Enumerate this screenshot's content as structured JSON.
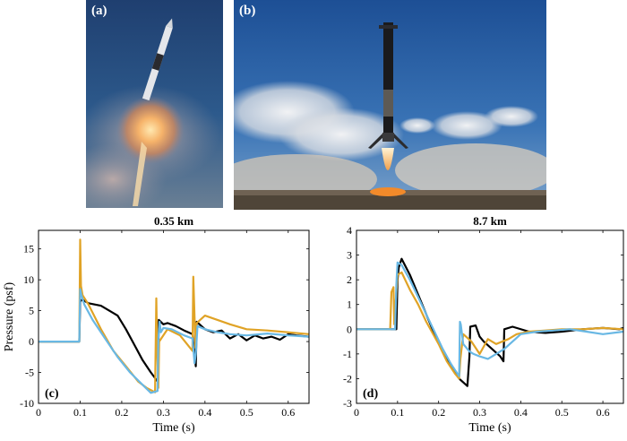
{
  "photos": [
    {
      "label": "(a)"
    },
    {
      "label": "(b)"
    }
  ],
  "colors": {
    "black": "#000000",
    "orange": "#E0A326",
    "blue": "#69B8E4"
  },
  "chart_data": [
    {
      "type": "line",
      "panel_label": "(c)",
      "title": "0.35 km",
      "xlabel": "Time (s)",
      "ylabel": "Pressure (psf)",
      "xlim": [
        0,
        0.65
      ],
      "ylim": [
        -10,
        18
      ],
      "xticks": [
        "0",
        "0.1",
        "0.2",
        "0.3",
        "0.4",
        "0.5",
        "0.6"
      ],
      "yticks": [
        "-10",
        "-5",
        "0",
        "5",
        "10",
        "15"
      ],
      "series": [
        {
          "color": "#000000",
          "x": [
            0,
            0.098,
            0.1,
            0.105,
            0.12,
            0.15,
            0.17,
            0.19,
            0.21,
            0.23,
            0.25,
            0.27,
            0.287,
            0.289,
            0.3,
            0.31,
            0.33,
            0.35,
            0.37,
            0.378,
            0.38,
            0.4,
            0.42,
            0.44,
            0.46,
            0.48,
            0.5,
            0.52,
            0.54,
            0.56,
            0.58,
            0.6,
            0.62,
            0.65
          ],
          "y": [
            0,
            0,
            6.5,
            6.8,
            6.2,
            5.8,
            5,
            4.2,
            2,
            -0.5,
            -3,
            -5,
            -6.5,
            3.5,
            2.8,
            3,
            2.5,
            1.8,
            1.2,
            -4,
            3.2,
            2,
            1.5,
            1.8,
            0.5,
            1.2,
            0.2,
            1,
            0.5,
            0.8,
            0.3,
            1.2,
            1,
            0.8
          ]
        },
        {
          "color": "#E0A326",
          "x": [
            0,
            0.098,
            0.1,
            0.102,
            0.106,
            0.12,
            0.15,
            0.18,
            0.21,
            0.24,
            0.26,
            0.28,
            0.283,
            0.285,
            0.288,
            0.29,
            0.31,
            0.34,
            0.37,
            0.372,
            0.375,
            0.377,
            0.38,
            0.4,
            0.43,
            0.46,
            0.5,
            0.55,
            0.6,
            0.65
          ],
          "y": [
            0,
            0,
            16.5,
            9,
            7.5,
            6,
            2,
            -1.5,
            -4,
            -6.5,
            -7.5,
            -8.2,
            7,
            -0.5,
            -7.5,
            0,
            2,
            1,
            -1.5,
            10.5,
            4,
            -1,
            3,
            4.2,
            3.5,
            2.8,
            2,
            1.8,
            1.5,
            1.2
          ]
        },
        {
          "color": "#69B8E4",
          "x": [
            0,
            0.098,
            0.1,
            0.103,
            0.11,
            0.13,
            0.16,
            0.19,
            0.22,
            0.25,
            0.27,
            0.286,
            0.288,
            0.291,
            0.294,
            0.3,
            0.32,
            0.35,
            0.37,
            0.375,
            0.378,
            0.382,
            0.4,
            0.43,
            0.46,
            0.5,
            0.55,
            0.6,
            0.65
          ],
          "y": [
            0,
            0,
            8.5,
            7.5,
            6,
            3.5,
            0.5,
            -2.5,
            -5,
            -7,
            -8.3,
            -8,
            0.5,
            3.2,
            1.5,
            2.2,
            2,
            1,
            0.5,
            -3.5,
            -2,
            2.5,
            2,
            1.5,
            1.2,
            1,
            1.3,
            1,
            0.8
          ]
        }
      ]
    },
    {
      "type": "line",
      "panel_label": "(d)",
      "title": "8.7 km",
      "xlabel": "Time (s)",
      "ylabel": "",
      "xlim": [
        0,
        0.65
      ],
      "ylim": [
        -3,
        4
      ],
      "xticks": [
        "0",
        "0.1",
        "0.2",
        "0.3",
        "0.4",
        "0.5",
        "0.6"
      ],
      "yticks": [
        "-3",
        "-2",
        "-1",
        "0",
        "1",
        "2",
        "3",
        "4"
      ],
      "series": [
        {
          "color": "#000000",
          "x": [
            0,
            0.097,
            0.1,
            0.103,
            0.11,
            0.13,
            0.15,
            0.17,
            0.19,
            0.21,
            0.23,
            0.25,
            0.27,
            0.275,
            0.277,
            0.29,
            0.3,
            0.31,
            0.33,
            0.35,
            0.358,
            0.36,
            0.38,
            0.42,
            0.46,
            0.5,
            0.55,
            0.6,
            0.64,
            0.65
          ],
          "y": [
            0,
            0,
            2,
            2.5,
            2.85,
            2.2,
            1.4,
            0.6,
            -0.2,
            -0.9,
            -1.5,
            -2,
            -2.3,
            -1.1,
            0.1,
            0.15,
            -0.3,
            -0.5,
            -0.8,
            -1.1,
            -1.3,
            0,
            0.1,
            -0.1,
            -0.15,
            -0.1,
            0,
            0.05,
            0,
            0.05
          ]
        },
        {
          "color": "#E0A326",
          "x": [
            0,
            0.082,
            0.085,
            0.09,
            0.092,
            0.095,
            0.1,
            0.11,
            0.13,
            0.15,
            0.17,
            0.2,
            0.22,
            0.24,
            0.25,
            0.253,
            0.26,
            0.28,
            0.3,
            0.32,
            0.34,
            0.37,
            0.39,
            0.42,
            0.46,
            0.5,
            0.55,
            0.6,
            0.65
          ],
          "y": [
            0,
            0,
            1.5,
            1.7,
            0.2,
            1,
            2.2,
            2.3,
            1.6,
            1,
            0.3,
            -0.6,
            -1.3,
            -1.8,
            -2,
            -1.2,
            -0.2,
            -0.5,
            -1,
            -0.4,
            -0.6,
            -0.4,
            -0.2,
            -0.1,
            -0.05,
            0,
            0,
            0.05,
            0
          ]
        },
        {
          "color": "#69B8E4",
          "x": [
            0,
            0.094,
            0.097,
            0.1,
            0.11,
            0.13,
            0.15,
            0.17,
            0.19,
            0.21,
            0.23,
            0.25,
            0.252,
            0.254,
            0.26,
            0.275,
            0.285,
            0.3,
            0.32,
            0.34,
            0.36,
            0.4,
            0.44,
            0.48,
            0.52,
            0.56,
            0.6,
            0.65
          ],
          "y": [
            0,
            0,
            1.8,
            2.7,
            2.6,
            2,
            1.3,
            0.6,
            -0.1,
            -0.8,
            -1.4,
            -1.9,
            0.3,
            0.2,
            -0.6,
            -0.9,
            -1,
            -1.1,
            -1.2,
            -1,
            -0.8,
            -0.2,
            -0.1,
            -0.05,
            0,
            -0.1,
            -0.2,
            -0.1
          ]
        }
      ]
    }
  ]
}
